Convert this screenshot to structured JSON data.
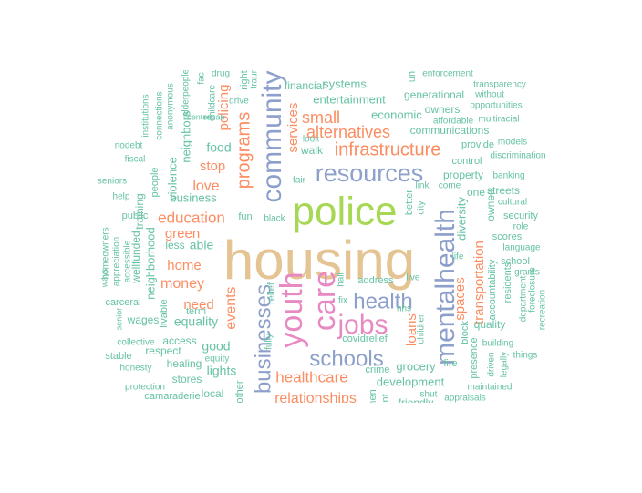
{
  "palette": {
    "green": "#66c2a5",
    "orange": "#fc8d62",
    "blue": "#8da0cb",
    "pink": "#e78ac3",
    "lime": "#a6d854",
    "tan": "#e5c494"
  },
  "words": [
    {
      "text": "housing",
      "color": "tan"
    },
    {
      "text": "police",
      "color": "lime"
    },
    {
      "text": "community",
      "color": "blue"
    },
    {
      "text": "resources",
      "color": "blue"
    },
    {
      "text": "mentalhealth",
      "color": "blue"
    },
    {
      "text": "youth",
      "color": "pink"
    },
    {
      "text": "care",
      "color": "pink"
    },
    {
      "text": "jobs",
      "color": "pink"
    },
    {
      "text": "schools",
      "color": "blue"
    },
    {
      "text": "businesses",
      "color": "blue"
    },
    {
      "text": "health",
      "color": "blue"
    },
    {
      "text": "infrastructure",
      "color": "orange"
    },
    {
      "text": "programs",
      "color": "orange"
    },
    {
      "text": "alternatives",
      "color": "orange"
    },
    {
      "text": "small",
      "color": "orange"
    },
    {
      "text": "healthcare",
      "color": "orange"
    },
    {
      "text": "relationships",
      "color": "orange"
    },
    {
      "text": "education",
      "color": "orange"
    },
    {
      "text": "money",
      "color": "orange"
    },
    {
      "text": "events",
      "color": "orange"
    },
    {
      "text": "transportation",
      "color": "orange"
    },
    {
      "text": "spaces",
      "color": "orange"
    },
    {
      "text": "loans",
      "color": "orange"
    },
    {
      "text": "services",
      "color": "orange"
    },
    {
      "text": "love",
      "color": "orange"
    },
    {
      "text": "stop",
      "color": "orange"
    },
    {
      "text": "home",
      "color": "orange"
    },
    {
      "text": "need",
      "color": "orange"
    },
    {
      "text": "green",
      "color": "orange"
    },
    {
      "text": "policing",
      "color": "orange"
    },
    {
      "text": "development",
      "color": "green"
    },
    {
      "text": "grocery",
      "color": "green"
    },
    {
      "text": "economic",
      "color": "green"
    },
    {
      "text": "entertainment",
      "color": "green"
    },
    {
      "text": "systems",
      "color": "green"
    },
    {
      "text": "financial",
      "color": "green"
    },
    {
      "text": "generational",
      "color": "green"
    },
    {
      "text": "owners",
      "color": "green"
    },
    {
      "text": "communications",
      "color": "green"
    },
    {
      "text": "affordable",
      "color": "green"
    },
    {
      "text": "multiracial",
      "color": "green"
    },
    {
      "text": "provide",
      "color": "green"
    },
    {
      "text": "models",
      "color": "green"
    },
    {
      "text": "discrimination",
      "color": "green"
    },
    {
      "text": "control",
      "color": "green"
    },
    {
      "text": "property",
      "color": "green"
    },
    {
      "text": "banking",
      "color": "green"
    },
    {
      "text": "streets",
      "color": "green"
    },
    {
      "text": "cultural",
      "color": "green"
    },
    {
      "text": "security",
      "color": "green"
    },
    {
      "text": "role",
      "color": "green"
    },
    {
      "text": "scores",
      "color": "green"
    },
    {
      "text": "language",
      "color": "green"
    },
    {
      "text": "school",
      "color": "green"
    },
    {
      "text": "grants",
      "color": "green"
    },
    {
      "text": "diversity",
      "color": "green"
    },
    {
      "text": "owned",
      "color": "green"
    },
    {
      "text": "one",
      "color": "green"
    },
    {
      "text": "residents",
      "color": "green"
    },
    {
      "text": "accountability",
      "color": "green"
    },
    {
      "text": "department",
      "color": "green"
    },
    {
      "text": "foreclosure",
      "color": "green"
    },
    {
      "text": "recreation",
      "color": "green"
    },
    {
      "text": "quality",
      "color": "green"
    },
    {
      "text": "block",
      "color": "green"
    },
    {
      "text": "presence",
      "color": "green"
    },
    {
      "text": "driven",
      "color": "green"
    },
    {
      "text": "legally",
      "color": "green"
    },
    {
      "text": "building",
      "color": "green"
    },
    {
      "text": "things",
      "color": "green"
    },
    {
      "text": "maintained",
      "color": "green"
    },
    {
      "text": "appraisals",
      "color": "green"
    },
    {
      "text": "shut",
      "color": "green"
    },
    {
      "text": "fire",
      "color": "green"
    },
    {
      "text": "friendly",
      "color": "green"
    },
    {
      "text": "crime",
      "color": "green"
    },
    {
      "text": "covidrelief",
      "color": "green"
    },
    {
      "text": "address",
      "color": "green"
    },
    {
      "text": "live",
      "color": "green"
    },
    {
      "text": "nhs",
      "color": "green"
    },
    {
      "text": "children",
      "color": "green"
    },
    {
      "text": "fix",
      "color": "green"
    },
    {
      "text": "hall",
      "color": "green"
    },
    {
      "text": "relief",
      "color": "green"
    },
    {
      "text": "fully",
      "color": "green"
    },
    {
      "text": "better",
      "color": "green"
    },
    {
      "text": "city",
      "color": "green"
    },
    {
      "text": "link",
      "color": "green"
    },
    {
      "text": "come",
      "color": "green"
    },
    {
      "text": "life",
      "color": "green"
    },
    {
      "text": "enforcement",
      "color": "green"
    },
    {
      "text": "transparency",
      "color": "green"
    },
    {
      "text": "without",
      "color": "green"
    },
    {
      "text": "opportunities",
      "color": "green"
    },
    {
      "text": "walk",
      "color": "green"
    },
    {
      "text": "look",
      "color": "green"
    },
    {
      "text": "fair",
      "color": "green"
    },
    {
      "text": "black",
      "color": "green"
    },
    {
      "text": "food",
      "color": "green"
    },
    {
      "text": "business",
      "color": "green"
    },
    {
      "text": "able",
      "color": "green"
    },
    {
      "text": "less",
      "color": "green"
    },
    {
      "text": "fun",
      "color": "green"
    },
    {
      "text": "term",
      "color": "green"
    },
    {
      "text": "equality",
      "color": "green"
    },
    {
      "text": "access",
      "color": "green"
    },
    {
      "text": "respect",
      "color": "green"
    },
    {
      "text": "good",
      "color": "green"
    },
    {
      "text": "healing",
      "color": "green"
    },
    {
      "text": "equity",
      "color": "green"
    },
    {
      "text": "lights",
      "color": "green"
    },
    {
      "text": "stores",
      "color": "green"
    },
    {
      "text": "local",
      "color": "green"
    },
    {
      "text": "camaraderie",
      "color": "green"
    },
    {
      "text": "protection",
      "color": "green"
    },
    {
      "text": "honesty",
      "color": "green"
    },
    {
      "text": "stable",
      "color": "green"
    },
    {
      "text": "collective",
      "color": "green"
    },
    {
      "text": "wages",
      "color": "green"
    },
    {
      "text": "carceral",
      "color": "green"
    },
    {
      "text": "senior",
      "color": "green"
    },
    {
      "text": "livable",
      "color": "green"
    },
    {
      "text": "neighborhood",
      "color": "green"
    },
    {
      "text": "wellfunded",
      "color": "green"
    },
    {
      "text": "homeowners",
      "color": "green"
    },
    {
      "text": "appreciation",
      "color": "green"
    },
    {
      "text": "accessible",
      "color": "green"
    },
    {
      "text": "ways",
      "color": "green"
    },
    {
      "text": "public",
      "color": "green"
    },
    {
      "text": "help",
      "color": "green"
    },
    {
      "text": "seniors",
      "color": "green"
    },
    {
      "text": "fiscal",
      "color": "green"
    },
    {
      "text": "nodebt",
      "color": "green"
    },
    {
      "text": "training",
      "color": "green"
    },
    {
      "text": "people",
      "color": "green"
    },
    {
      "text": "connections",
      "color": "green"
    },
    {
      "text": "institutions",
      "color": "green"
    },
    {
      "text": "anonymous",
      "color": "green"
    },
    {
      "text": "violence",
      "color": "green"
    },
    {
      "text": "neighbors",
      "color": "green"
    },
    {
      "text": "alderpeople",
      "color": "green"
    },
    {
      "text": "centers",
      "color": "green"
    },
    {
      "text": "rehab",
      "color": "green"
    },
    {
      "text": "childcare",
      "color": "green"
    },
    {
      "text": "drug",
      "color": "green"
    },
    {
      "text": "drive",
      "color": "green"
    },
    {
      "text": "right",
      "color": "green"
    },
    {
      "text": "trauma",
      "color": "green"
    },
    {
      "text": "un",
      "color": "green"
    },
    {
      "text": "taxes",
      "color": "green"
    },
    {
      "text": "other",
      "color": "green"
    },
    {
      "text": "men",
      "color": "green"
    },
    {
      "text": "ent",
      "color": "green"
    },
    {
      "text": "fac",
      "color": "green"
    }
  ]
}
